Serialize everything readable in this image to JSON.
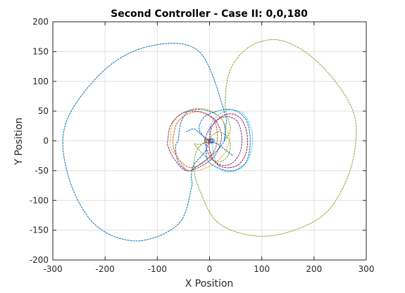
{
  "chart_data": {
    "type": "line",
    "title": "Second Controller - Case II: 0,0,180",
    "xlabel": "X Position",
    "ylabel": "Y Position",
    "xlim": [
      -300,
      300
    ],
    "ylim": [
      -200,
      200
    ],
    "xticks": [
      -300,
      -200,
      -100,
      0,
      100,
      200,
      300
    ],
    "yticks": [
      -200,
      -150,
      -100,
      -50,
      0,
      50,
      100,
      150,
      200
    ],
    "xtick_labels": [
      "-300",
      "-200",
      "-100",
      "0",
      "100",
      "200",
      "300"
    ],
    "ytick_labels": [
      "-200",
      "-150",
      "-100",
      "-50",
      "0",
      "50",
      "100",
      "150",
      "200"
    ],
    "grid": true,
    "series": [
      {
        "color": "#0072BD",
        "points": [
          [
            28,
            0
          ],
          [
            30,
            20
          ],
          [
            28,
            50
          ],
          [
            -20,
            150
          ],
          [
            -110,
            160
          ],
          [
            -200,
            120
          ],
          [
            -275,
            30
          ],
          [
            -270,
            -60
          ],
          [
            -220,
            -140
          ],
          [
            -140,
            -168
          ],
          [
            -60,
            -140
          ],
          [
            -35,
            -80
          ],
          [
            -35,
            -60
          ],
          [
            -30,
            -40
          ],
          [
            -10,
            -20
          ],
          [
            0,
            0
          ]
        ]
      },
      {
        "color": "#77AC30",
        "points": [
          [
            28,
            0
          ],
          [
            40,
            20
          ],
          [
            30,
            60
          ],
          [
            40,
            120
          ],
          [
            80,
            160
          ],
          [
            140,
            168
          ],
          [
            210,
            130
          ],
          [
            270,
            60
          ],
          [
            280,
            0
          ],
          [
            260,
            -70
          ],
          [
            210,
            -130
          ],
          [
            110,
            -160
          ],
          [
            20,
            -140
          ],
          [
            -20,
            -80
          ],
          [
            -30,
            -40
          ],
          [
            -20,
            -10
          ],
          [
            5,
            0
          ]
        ]
      },
      {
        "color": "#0072BD",
        "points": [
          [
            -60,
            0
          ],
          [
            -55,
            30
          ],
          [
            -40,
            50
          ],
          [
            -10,
            52
          ],
          [
            20,
            40
          ],
          [
            30,
            20
          ],
          [
            28,
            0
          ],
          [
            10,
            -20
          ],
          [
            -20,
            -40
          ],
          [
            -40,
            -50
          ],
          [
            -60,
            -35
          ],
          [
            -65,
            -10
          ],
          [
            -60,
            0
          ]
        ]
      },
      {
        "color": "#EDB120",
        "points": [
          [
            -75,
            0
          ],
          [
            -70,
            30
          ],
          [
            -45,
            50
          ],
          [
            -10,
            54
          ],
          [
            20,
            40
          ],
          [
            35,
            15
          ],
          [
            38,
            0
          ],
          [
            25,
            -25
          ],
          [
            -5,
            -45
          ],
          [
            -40,
            -50
          ],
          [
            -60,
            -30
          ],
          [
            -75,
            -10
          ],
          [
            -75,
            0
          ]
        ]
      },
      {
        "color": "#7E2F8E",
        "points": [
          [
            -80,
            0
          ],
          [
            -75,
            25
          ],
          [
            -55,
            45
          ],
          [
            -25,
            50
          ],
          [
            5,
            40
          ],
          [
            20,
            20
          ],
          [
            22,
            0
          ],
          [
            10,
            -25
          ],
          [
            -15,
            -42
          ],
          [
            -45,
            -50
          ],
          [
            -68,
            -30
          ],
          [
            -80,
            -8
          ],
          [
            -80,
            0
          ]
        ]
      },
      {
        "color": "#D95319",
        "points": [
          [
            -70,
            5
          ],
          [
            -62,
            30
          ],
          [
            -40,
            46
          ],
          [
            -15,
            48
          ],
          [
            8,
            35
          ],
          [
            15,
            10
          ],
          [
            10,
            -15
          ],
          [
            -10,
            -35
          ],
          [
            -35,
            -45
          ],
          [
            -55,
            -35
          ],
          [
            -68,
            -15
          ],
          [
            -70,
            5
          ]
        ]
      },
      {
        "color": "#0072BD",
        "points": [
          [
            -5,
            0
          ],
          [
            -20,
            20
          ],
          [
            -10,
            40
          ],
          [
            15,
            50
          ],
          [
            45,
            52
          ],
          [
            70,
            35
          ],
          [
            78,
            0
          ],
          [
            70,
            -35
          ],
          [
            45,
            -50
          ],
          [
            15,
            -45
          ],
          [
            -5,
            -30
          ],
          [
            -5,
            0
          ]
        ]
      },
      {
        "color": "#4DBEEE",
        "points": [
          [
            5,
            -5
          ],
          [
            0,
            20
          ],
          [
            15,
            42
          ],
          [
            40,
            52
          ],
          [
            65,
            45
          ],
          [
            80,
            20
          ],
          [
            82,
            -5
          ],
          [
            72,
            -35
          ],
          [
            50,
            -50
          ],
          [
            25,
            -50
          ],
          [
            10,
            -30
          ],
          [
            5,
            -5
          ]
        ]
      },
      {
        "color": "#A2142F",
        "points": [
          [
            0,
            0
          ],
          [
            5,
            25
          ],
          [
            25,
            42
          ],
          [
            45,
            45
          ],
          [
            62,
            35
          ],
          [
            72,
            10
          ],
          [
            70,
            -20
          ],
          [
            55,
            -40
          ],
          [
            30,
            -45
          ],
          [
            10,
            -35
          ],
          [
            0,
            -15
          ],
          [
            0,
            0
          ]
        ]
      },
      {
        "color": "#7E2F8E",
        "points": [
          [
            -10,
            0
          ],
          [
            0,
            20
          ],
          [
            20,
            38
          ],
          [
            40,
            40
          ],
          [
            55,
            30
          ],
          [
            62,
            5
          ],
          [
            58,
            -20
          ],
          [
            42,
            -38
          ],
          [
            20,
            -40
          ],
          [
            0,
            -25
          ],
          [
            -10,
            0
          ]
        ]
      },
      {
        "color": "#77AC30",
        "points": [
          [
            -30,
            -5
          ],
          [
            -15,
            -5
          ],
          [
            0,
            5
          ],
          [
            15,
            15
          ],
          [
            30,
            10
          ],
          [
            40,
            -5
          ],
          [
            35,
            -25
          ],
          [
            20,
            -35
          ],
          [
            0,
            -30
          ],
          [
            -15,
            -20
          ],
          [
            -30,
            -5
          ]
        ]
      },
      {
        "color": "#0072BD",
        "points": [
          [
            -45,
            15
          ],
          [
            -30,
            20
          ],
          [
            -15,
            10
          ],
          [
            0,
            0
          ],
          [
            15,
            -5
          ],
          [
            30,
            -15
          ],
          [
            45,
            -25
          ]
        ]
      }
    ],
    "markers": [
      {
        "color": "#D95319",
        "x": -5,
        "y": 0
      },
      {
        "color": "#0072BD",
        "x": 5,
        "y": 0
      },
      {
        "color": "#7E2F8E",
        "x": 2,
        "y": 0
      }
    ]
  }
}
